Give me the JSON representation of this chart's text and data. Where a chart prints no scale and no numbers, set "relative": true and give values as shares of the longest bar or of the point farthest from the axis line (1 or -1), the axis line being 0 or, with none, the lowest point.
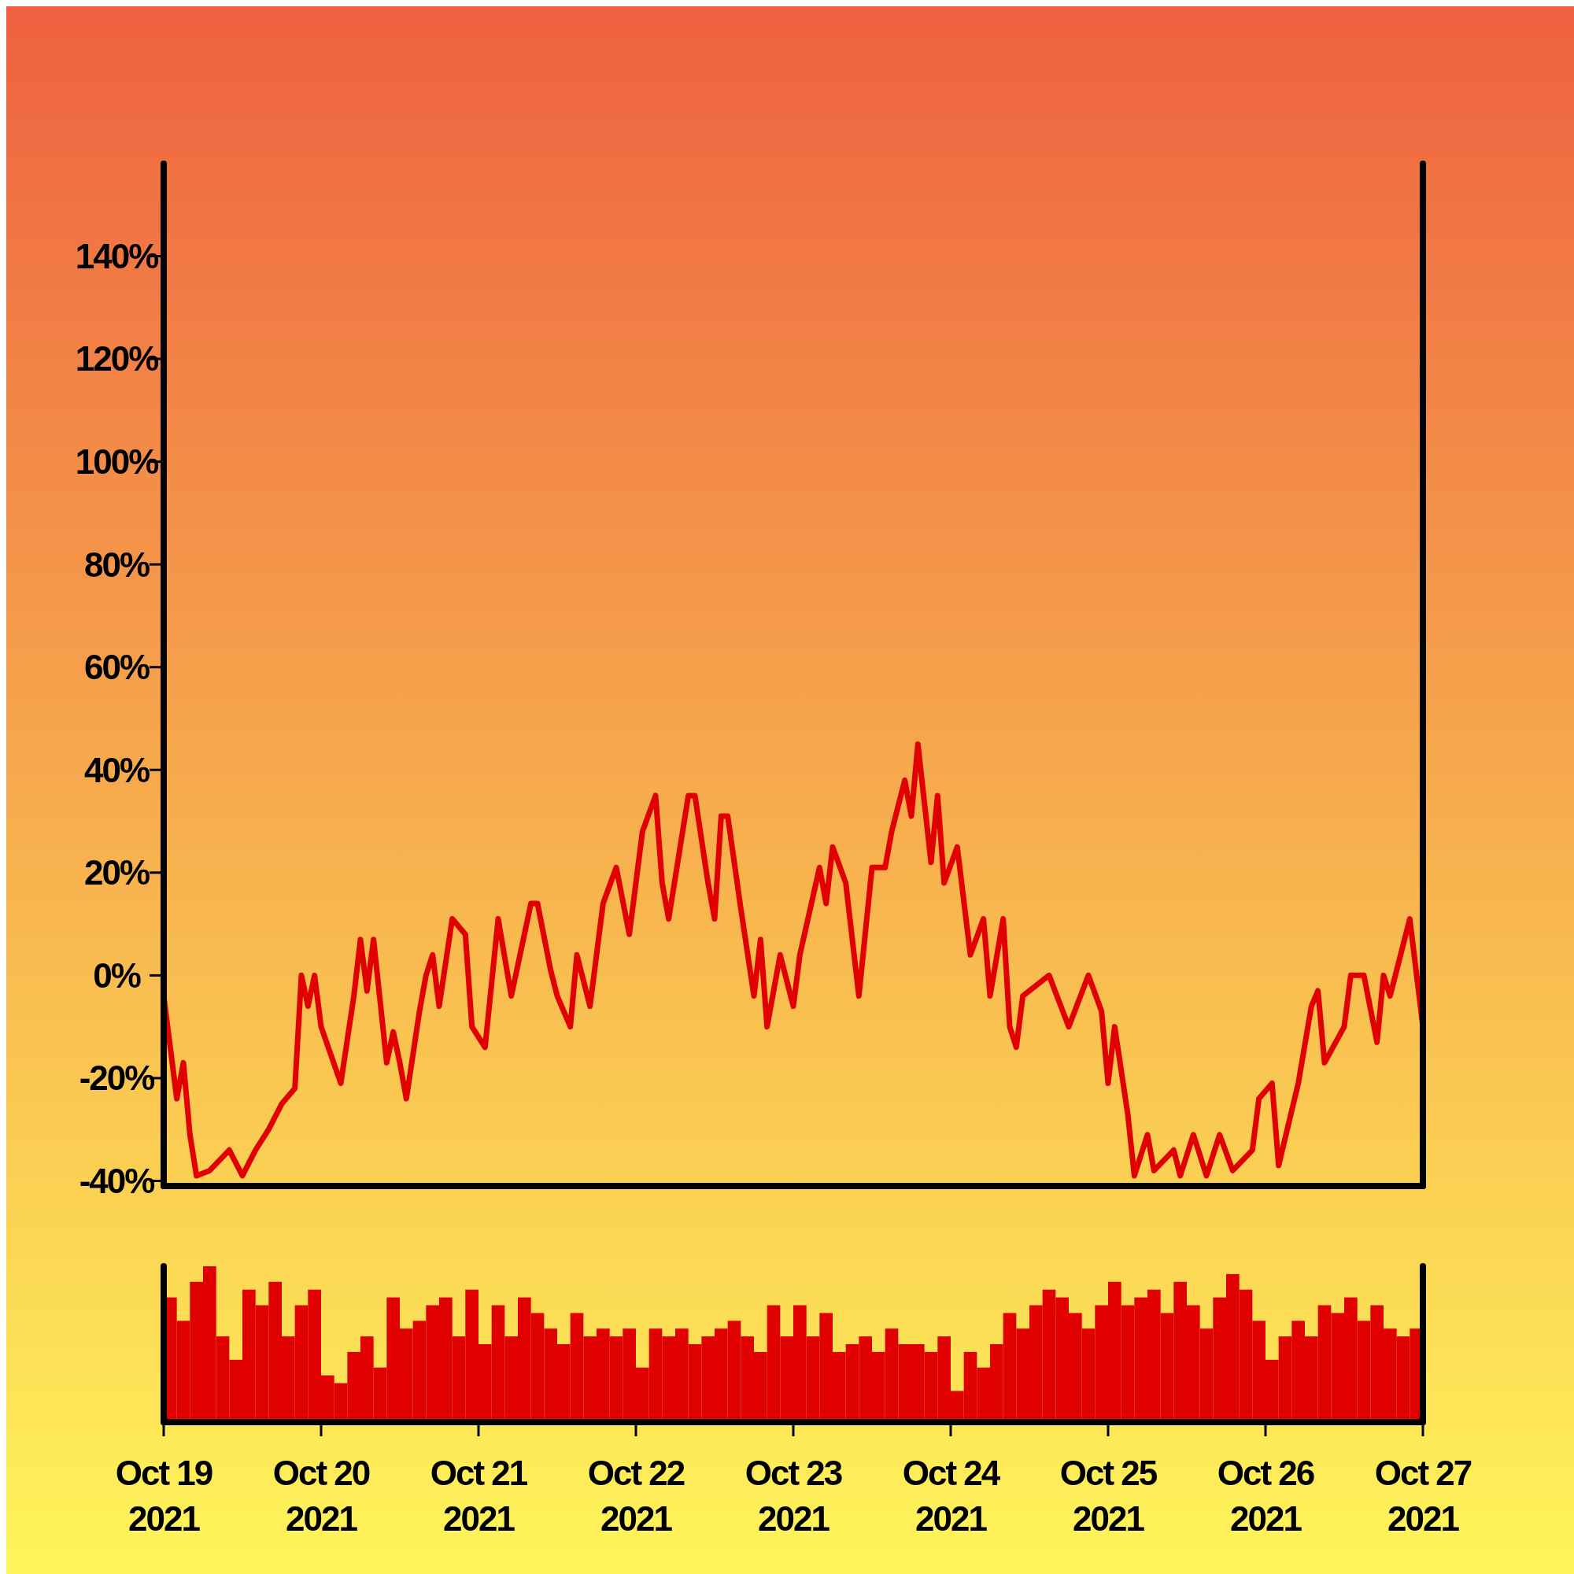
{
  "chart_data": [
    {
      "type": "line",
      "color": "#e00000",
      "tick_labels": "y",
      "xlim": [
        "2021-10-19",
        "2021-10-27"
      ],
      "ylim": [
        -41,
        158
      ],
      "yticks": [
        {
          "value": -40,
          "label": "-40%"
        },
        {
          "value": -20,
          "label": "-20%"
        },
        {
          "value": 0,
          "label": "0%"
        },
        {
          "value": 20,
          "label": "20%"
        },
        {
          "value": 40,
          "label": "40%"
        },
        {
          "value": 60,
          "label": "60%"
        },
        {
          "value": 80,
          "label": "80%"
        },
        {
          "value": 100,
          "label": "100%"
        },
        {
          "value": 120,
          "label": "120%"
        },
        {
          "value": 140,
          "label": "140%"
        }
      ],
      "x": [
        "2021-10-19T00:00",
        "2021-10-19T02:00",
        "2021-10-19T03:00",
        "2021-10-19T04:00",
        "2021-10-19T05:00",
        "2021-10-19T07:00",
        "2021-10-19T10:00",
        "2021-10-19T12:00",
        "2021-10-19T14:00",
        "2021-10-19T16:00",
        "2021-10-19T18:00",
        "2021-10-19T20:00",
        "2021-10-19T21:00",
        "2021-10-19T22:00",
        "2021-10-19T23:00",
        "2021-10-20T00:00",
        "2021-10-20T03:00",
        "2021-10-20T05:00",
        "2021-10-20T06:00",
        "2021-10-20T07:00",
        "2021-10-20T08:00",
        "2021-10-20T10:00",
        "2021-10-20T11:00",
        "2021-10-20T12:00",
        "2021-10-20T13:00",
        "2021-10-20T15:00",
        "2021-10-20T16:00",
        "2021-10-20T17:00",
        "2021-10-20T18:00",
        "2021-10-20T20:00",
        "2021-10-20T22:00",
        "2021-10-20T23:00",
        "2021-10-21T01:00",
        "2021-10-21T03:00",
        "2021-10-21T05:00",
        "2021-10-21T08:00",
        "2021-10-21T09:00",
        "2021-10-21T11:00",
        "2021-10-21T12:00",
        "2021-10-21T14:00",
        "2021-10-21T15:00",
        "2021-10-21T17:00",
        "2021-10-21T19:00",
        "2021-10-21T21:00",
        "2021-10-21T23:00",
        "2021-10-22T01:00",
        "2021-10-22T03:00",
        "2021-10-22T04:00",
        "2021-10-22T05:00",
        "2021-10-22T08:00",
        "2021-10-22T09:00",
        "2021-10-22T11:00",
        "2021-10-22T12:00",
        "2021-10-22T13:00",
        "2021-10-22T14:00",
        "2021-10-22T16:00",
        "2021-10-22T18:00",
        "2021-10-22T19:00",
        "2021-10-22T20:00",
        "2021-10-22T22:00",
        "2021-10-23T00:00",
        "2021-10-23T01:00",
        "2021-10-23T04:00",
        "2021-10-23T05:00",
        "2021-10-23T06:00",
        "2021-10-23T08:00",
        "2021-10-23T10:00",
        "2021-10-23T12:00",
        "2021-10-23T14:00",
        "2021-10-23T15:00",
        "2021-10-23T17:00",
        "2021-10-23T18:00",
        "2021-10-23T19:00",
        "2021-10-23T21:00",
        "2021-10-23T22:00",
        "2021-10-23T23:00",
        "2021-10-24T01:00",
        "2021-10-24T03:00",
        "2021-10-24T05:00",
        "2021-10-24T06:00",
        "2021-10-24T08:00",
        "2021-10-24T09:00",
        "2021-10-24T10:00",
        "2021-10-24T11:00",
        "2021-10-24T15:00",
        "2021-10-24T18:00",
        "2021-10-24T21:00",
        "2021-10-24T23:00",
        "2021-10-25T00:00",
        "2021-10-25T01:00",
        "2021-10-25T03:00",
        "2021-10-25T04:00",
        "2021-10-25T06:00",
        "2021-10-25T07:00",
        "2021-10-25T10:00",
        "2021-10-25T11:00",
        "2021-10-25T13:00",
        "2021-10-25T15:00",
        "2021-10-25T17:00",
        "2021-10-25T19:00",
        "2021-10-25T22:00",
        "2021-10-25T23:00",
        "2021-10-26T01:00",
        "2021-10-26T02:00",
        "2021-10-26T05:00",
        "2021-10-26T07:00",
        "2021-10-26T08:00",
        "2021-10-26T09:00",
        "2021-10-26T12:00",
        "2021-10-26T13:00",
        "2021-10-26T15:00",
        "2021-10-26T17:00",
        "2021-10-26T18:00",
        "2021-10-26T19:00",
        "2021-10-26T22:00",
        "2021-10-27T00:00"
      ],
      "values": [
        -4,
        -24,
        -17,
        -31,
        -39,
        -38,
        -34,
        -39,
        -34,
        -30,
        -25,
        -22,
        0,
        -6,
        0,
        -10,
        -21,
        -4,
        7,
        -3,
        7,
        -17,
        -11,
        -17,
        -24,
        -7,
        0,
        4,
        -6,
        11,
        8,
        -10,
        -14,
        11,
        -4,
        14,
        14,
        1,
        -4,
        -10,
        4,
        -6,
        14,
        21,
        8,
        28,
        35,
        18,
        11,
        35,
        35,
        18,
        11,
        31,
        31,
        13,
        -4,
        7,
        -10,
        4,
        -6,
        4,
        21,
        14,
        25,
        18,
        -4,
        21,
        21,
        28,
        38,
        31,
        45,
        22,
        35,
        18,
        25,
        4,
        11,
        -4,
        11,
        -10,
        -14,
        -4,
        0,
        -10,
        0,
        -7,
        -21,
        -10,
        -27,
        -39,
        -31,
        -38,
        -34,
        -39,
        -31,
        -39,
        -31,
        -38,
        -34,
        -24,
        -21,
        -37,
        -21,
        -6,
        -3,
        -17,
        -10,
        0,
        0,
        -13,
        0,
        -4,
        11,
        -10
      ]
    },
    {
      "type": "bar",
      "relative": true,
      "color": "#e00000",
      "tick_labels": "x",
      "xlim": [
        "2021-10-19",
        "2021-10-27"
      ],
      "xticks": [
        {
          "value": "2021-10-19",
          "label": "Oct 19\n2021"
        },
        {
          "value": "2021-10-20",
          "label": "Oct 20\n2021"
        },
        {
          "value": "2021-10-21",
          "label": "Oct 21\n2021"
        },
        {
          "value": "2021-10-22",
          "label": "Oct 22\n2021"
        },
        {
          "value": "2021-10-23",
          "label": "Oct 23\n2021"
        },
        {
          "value": "2021-10-24",
          "label": "Oct 24\n2021"
        },
        {
          "value": "2021-10-25",
          "label": "Oct 25\n2021"
        },
        {
          "value": "2021-10-26",
          "label": "Oct 26\n2021"
        },
        {
          "value": "2021-10-27",
          "label": "Oct 27\n2021"
        }
      ],
      "x": [
        "2021-10-19T01:00",
        "2021-10-19T03:00",
        "2021-10-19T05:00",
        "2021-10-19T07:00",
        "2021-10-19T09:00",
        "2021-10-19T11:00",
        "2021-10-19T13:00",
        "2021-10-19T15:00",
        "2021-10-19T17:00",
        "2021-10-19T19:00",
        "2021-10-19T21:00",
        "2021-10-19T23:00",
        "2021-10-20T01:00",
        "2021-10-20T03:00",
        "2021-10-20T05:00",
        "2021-10-20T07:00",
        "2021-10-20T09:00",
        "2021-10-20T11:00",
        "2021-10-20T13:00",
        "2021-10-20T15:00",
        "2021-10-20T17:00",
        "2021-10-20T19:00",
        "2021-10-20T21:00",
        "2021-10-20T23:00",
        "2021-10-21T01:00",
        "2021-10-21T03:00",
        "2021-10-21T05:00",
        "2021-10-21T07:00",
        "2021-10-21T09:00",
        "2021-10-21T11:00",
        "2021-10-21T13:00",
        "2021-10-21T15:00",
        "2021-10-21T17:00",
        "2021-10-21T19:00",
        "2021-10-21T21:00",
        "2021-10-21T23:00",
        "2021-10-22T01:00",
        "2021-10-22T03:00",
        "2021-10-22T05:00",
        "2021-10-22T07:00",
        "2021-10-22T09:00",
        "2021-10-22T11:00",
        "2021-10-22T13:00",
        "2021-10-22T15:00",
        "2021-10-22T17:00",
        "2021-10-22T19:00",
        "2021-10-22T21:00",
        "2021-10-22T23:00",
        "2021-10-23T01:00",
        "2021-10-23T03:00",
        "2021-10-23T05:00",
        "2021-10-23T07:00",
        "2021-10-23T09:00",
        "2021-10-23T11:00",
        "2021-10-23T13:00",
        "2021-10-23T15:00",
        "2021-10-23T17:00",
        "2021-10-23T19:00",
        "2021-10-23T21:00",
        "2021-10-23T23:00",
        "2021-10-24T01:00",
        "2021-10-24T03:00",
        "2021-10-24T05:00",
        "2021-10-24T07:00",
        "2021-10-24T09:00",
        "2021-10-24T11:00",
        "2021-10-24T13:00",
        "2021-10-24T15:00",
        "2021-10-24T17:00",
        "2021-10-24T19:00",
        "2021-10-24T21:00",
        "2021-10-24T23:00",
        "2021-10-25T01:00",
        "2021-10-25T03:00",
        "2021-10-25T05:00",
        "2021-10-25T07:00",
        "2021-10-25T09:00",
        "2021-10-25T11:00",
        "2021-10-25T13:00",
        "2021-10-25T15:00",
        "2021-10-25T17:00",
        "2021-10-25T19:00",
        "2021-10-25T21:00",
        "2021-10-25T23:00",
        "2021-10-26T01:00",
        "2021-10-26T03:00",
        "2021-10-26T05:00",
        "2021-10-26T07:00",
        "2021-10-26T09:00",
        "2021-10-26T11:00",
        "2021-10-26T13:00",
        "2021-10-26T15:00",
        "2021-10-26T17:00",
        "2021-10-26T19:00",
        "2021-10-26T21:00",
        "2021-10-26T23:00"
      ],
      "values": [
        0.8,
        0.65,
        0.9,
        1,
        0.55,
        0.4,
        0.85,
        0.75,
        0.9,
        0.55,
        0.75,
        0.85,
        0.3,
        0.25,
        0.45,
        0.55,
        0.35,
        0.8,
        0.6,
        0.65,
        0.75,
        0.8,
        0.55,
        0.85,
        0.5,
        0.75,
        0.55,
        0.8,
        0.7,
        0.6,
        0.5,
        0.7,
        0.55,
        0.6,
        0.55,
        0.6,
        0.35,
        0.6,
        0.55,
        0.6,
        0.5,
        0.55,
        0.6,
        0.65,
        0.55,
        0.45,
        0.75,
        0.55,
        0.75,
        0.55,
        0.7,
        0.45,
        0.5,
        0.55,
        0.45,
        0.6,
        0.5,
        0.5,
        0.45,
        0.55,
        0.2,
        0.45,
        0.35,
        0.5,
        0.7,
        0.6,
        0.75,
        0.85,
        0.8,
        0.7,
        0.6,
        0.75,
        0.9,
        0.75,
        0.8,
        0.85,
        0.7,
        0.9,
        0.75,
        0.6,
        0.8,
        0.95,
        0.85,
        0.65,
        0.4,
        0.55,
        0.65,
        0.55,
        0.75,
        0.7,
        0.8,
        0.65,
        0.75,
        0.6,
        0.55,
        0.6
      ]
    }
  ]
}
